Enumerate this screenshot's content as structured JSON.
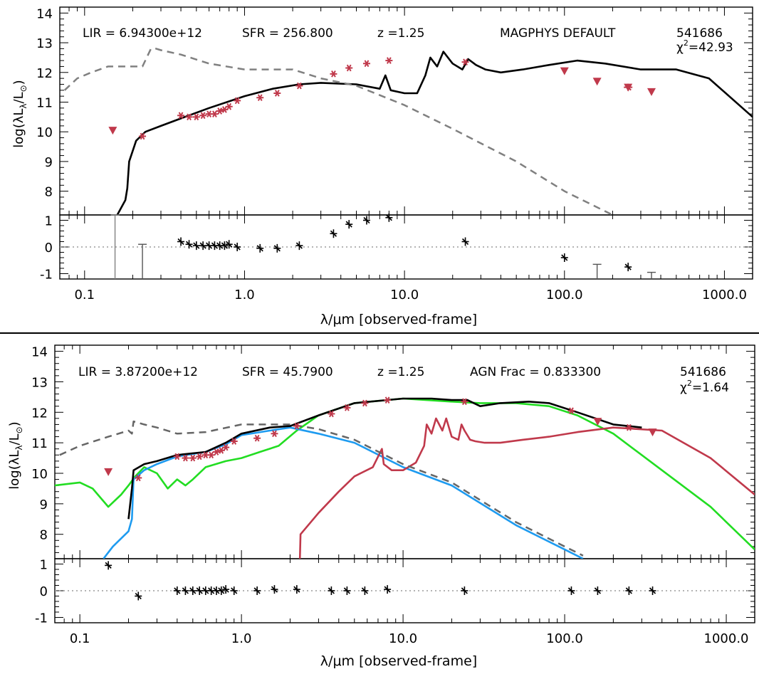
{
  "chart_data": [
    {
      "type": "line",
      "xscale": "log",
      "xlim": [
        0.07,
        1500
      ],
      "ylim": [
        7.2,
        14.2
      ],
      "xticks": [
        0.1,
        1.0,
        10.0,
        100.0,
        1000.0
      ],
      "xtick_labels": [
        "0.1",
        "1.0",
        "10.0",
        "100.0",
        "1000.0"
      ],
      "yticks": [
        8,
        9,
        10,
        11,
        12,
        13,
        14
      ],
      "ytick_labels": [
        "8",
        "9",
        "10",
        "11",
        "12",
        "13",
        "14"
      ],
      "xlabel": "λ/μm [observed-frame]",
      "ylabel": "log(λL",
      "ylabel_sub": "λ",
      "ylabel_unit": "/L",
      "ylabel_sun": "⊙",
      "ylabel_close": ")",
      "annotations": {
        "lir": "LIR =  6.94300e+12",
        "sfr": "SFR = 256.800",
        "z": "z =1.25",
        "model": "MAGPHYS DEFAULT",
        "id": "541686",
        "chi_symbol": "χ",
        "chi_sup": "2",
        "chi_value": "=42.93"
      },
      "series": [
        {
          "name": "total model",
          "color": "#000000",
          "style": "solid",
          "x": [
            0.16,
            0.18,
            0.185,
            0.19,
            0.21,
            0.24,
            0.3,
            0.4,
            0.6,
            1.0,
            1.5,
            2.2,
            3.0,
            5.0,
            7.0,
            7.6,
            8.2,
            10,
            12,
            13.5,
            14.5,
            16,
            17.5,
            20,
            23,
            25,
            28,
            32,
            40,
            55,
            80,
            120,
            180,
            300,
            500,
            800,
            1500
          ],
          "y": [
            7.2,
            7.7,
            8.1,
            9.0,
            9.7,
            10.0,
            10.2,
            10.45,
            10.8,
            11.2,
            11.45,
            11.6,
            11.65,
            11.6,
            11.45,
            11.9,
            11.4,
            11.3,
            11.3,
            11.9,
            12.5,
            12.2,
            12.7,
            12.3,
            12.1,
            12.45,
            12.25,
            12.1,
            12.0,
            12.1,
            12.25,
            12.4,
            12.3,
            12.1,
            12.1,
            11.8,
            10.5
          ]
        },
        {
          "name": "unattenuated stellar",
          "color": "#808080",
          "style": "dashed",
          "x": [
            0.075,
            0.09,
            0.11,
            0.14,
            0.18,
            0.23,
            0.26,
            0.28,
            0.3,
            0.4,
            0.6,
            1.0,
            2.0,
            3.0,
            5.0,
            10,
            20,
            50,
            100,
            200
          ],
          "y": [
            11.4,
            11.8,
            12.0,
            12.2,
            12.2,
            12.2,
            12.8,
            12.8,
            12.75,
            12.6,
            12.3,
            12.1,
            12.1,
            11.8,
            11.55,
            10.9,
            10.1,
            9.0,
            8.0,
            7.2
          ]
        },
        {
          "name": "photometry",
          "color": "#c0394b",
          "style": "marker",
          "marker": "asterisk",
          "x": [
            0.23,
            0.4,
            0.45,
            0.5,
            0.55,
            0.6,
            0.65,
            0.7,
            0.75,
            0.8,
            0.9,
            1.25,
            1.6,
            2.2,
            3.6,
            4.5,
            5.8,
            8.0,
            24
          ],
          "y": [
            9.85,
            10.55,
            10.5,
            10.5,
            10.55,
            10.6,
            10.6,
            10.7,
            10.75,
            10.85,
            11.05,
            11.15,
            11.3,
            11.55,
            11.95,
            12.15,
            12.3,
            12.4,
            12.35
          ]
        },
        {
          "name": "photometry (x-errors)",
          "color": "#c0394b",
          "style": "marker",
          "marker": "xbar",
          "x": [
            250
          ],
          "y": [
            11.5
          ]
        },
        {
          "name": "upper limits",
          "color": "#c0394b",
          "style": "marker",
          "marker": "triangle-down",
          "x": [
            0.15,
            100,
            160,
            250,
            350
          ],
          "y": [
            10.05,
            12.05,
            11.7,
            11.5,
            11.35
          ]
        }
      ],
      "residual_panel": {
        "ylim": [
          -1.2,
          1.2
        ],
        "yticks": [
          -1,
          0,
          1
        ],
        "ytick_labels": [
          "-1",
          "0",
          "1"
        ],
        "points": {
          "x": [
            0.4,
            0.45,
            0.5,
            0.55,
            0.6,
            0.65,
            0.7,
            0.75,
            0.8,
            0.9,
            1.25,
            1.6,
            2.2,
            3.6,
            4.5,
            5.8,
            8.0,
            24,
            100,
            250
          ],
          "y": [
            0.2,
            0.1,
            0.05,
            0.05,
            0.05,
            0.05,
            0.05,
            0.05,
            0.1,
            0.0,
            -0.05,
            -0.05,
            0.05,
            0.5,
            0.85,
            1.0,
            1.1,
            0.2,
            -0.4,
            -0.75
          ]
        },
        "limits": {
          "x": [
            0.155,
            0.23,
            160,
            350
          ],
          "top": [
            1.2,
            0.1,
            -0.65,
            -0.95
          ],
          "bottom": [
            -1.2,
            -1.2,
            -1.2,
            -1.2
          ],
          "color": [
            "#808080",
            "#555555",
            "#555555",
            "#555555"
          ]
        }
      }
    },
    {
      "type": "line",
      "xscale": "log",
      "xlim": [
        0.07,
        1500
      ],
      "ylim": [
        7.2,
        14.2
      ],
      "xticks": [
        0.1,
        1.0,
        10.0,
        100.0,
        1000.0
      ],
      "xtick_labels": [
        "0.1",
        "1.0",
        "10.0",
        "100.0",
        "1000.0"
      ],
      "yticks": [
        8,
        9,
        10,
        11,
        12,
        13,
        14
      ],
      "ytick_labels": [
        "8",
        "9",
        "10",
        "11",
        "12",
        "13",
        "14"
      ],
      "xlabel": "λ/μm [observed-frame]",
      "ylabel": "log(λL",
      "ylabel_sub": "λ",
      "ylabel_unit": "/L",
      "ylabel_sun": "⊙",
      "ylabel_close": ")",
      "annotations": {
        "lir": "LIR =  3.87200e+12",
        "sfr": "SFR = 45.7900",
        "z": "z =1.25",
        "model": "AGN Frac =  0.833300",
        "id": "541686",
        "chi_symbol": "χ",
        "chi_sup": "2",
        "chi_value": "=1.64"
      },
      "series": [
        {
          "name": "AGN (green)",
          "color": "#22dd22",
          "style": "solid",
          "x": [
            0.07,
            0.1,
            0.12,
            0.15,
            0.18,
            0.2,
            0.22,
            0.25,
            0.3,
            0.35,
            0.4,
            0.45,
            0.5,
            0.6,
            0.8,
            1.0,
            1.3,
            1.7,
            2.2,
            3.0,
            5.0,
            10,
            20,
            30,
            50,
            80,
            120,
            200,
            400,
            800,
            1500
          ],
          "y": [
            9.6,
            9.7,
            9.5,
            8.9,
            9.3,
            9.6,
            9.9,
            10.2,
            10.0,
            9.5,
            9.8,
            9.6,
            9.8,
            10.2,
            10.4,
            10.5,
            10.7,
            10.9,
            11.4,
            11.9,
            12.3,
            12.45,
            12.35,
            12.3,
            12.3,
            12.2,
            11.9,
            11.3,
            10.1,
            8.9,
            7.5
          ]
        },
        {
          "name": "stellar (blue)",
          "color": "#1e9bf0",
          "style": "solid",
          "x": [
            0.14,
            0.16,
            0.2,
            0.21,
            0.215,
            0.25,
            0.3,
            0.4,
            0.6,
            0.8,
            1.0,
            1.5,
            2.0,
            3.0,
            5.0,
            10,
            20,
            50,
            100,
            130
          ],
          "y": [
            7.2,
            7.6,
            8.1,
            8.5,
            9.8,
            10.1,
            10.3,
            10.55,
            10.7,
            10.95,
            11.25,
            11.4,
            11.5,
            11.3,
            11.0,
            10.2,
            9.6,
            8.3,
            7.5,
            7.2
          ]
        },
        {
          "name": "dust (red)",
          "color": "#c0394b",
          "style": "solid",
          "x": [
            2.3,
            2.32,
            3.0,
            4.0,
            5.0,
            6.5,
            7.4,
            7.6,
            8.5,
            10,
            12,
            13.5,
            14,
            15,
            16,
            17.5,
            18.5,
            20,
            22,
            23,
            24,
            26,
            28,
            32,
            40,
            55,
            80,
            120,
            200,
            400,
            800,
            1500
          ],
          "y": [
            7.2,
            8.0,
            8.7,
            9.4,
            9.9,
            10.2,
            10.8,
            10.3,
            10.1,
            10.1,
            10.35,
            10.9,
            11.6,
            11.3,
            11.8,
            11.4,
            11.8,
            11.2,
            11.1,
            11.6,
            11.4,
            11.1,
            11.05,
            11.0,
            11.0,
            11.1,
            11.2,
            11.35,
            11.5,
            11.4,
            10.5,
            9.3
          ]
        },
        {
          "name": "total model",
          "color": "#000000",
          "style": "solid",
          "x": [
            0.2,
            0.21,
            0.215,
            0.25,
            0.3,
            0.4,
            0.6,
            0.8,
            1.0,
            1.5,
            2.0,
            3.0,
            5.0,
            10,
            15,
            20,
            25,
            30,
            40,
            60,
            80,
            120,
            200,
            300
          ],
          "y": [
            8.5,
            9.5,
            10.1,
            10.3,
            10.4,
            10.6,
            10.7,
            11.0,
            11.3,
            11.5,
            11.55,
            11.9,
            12.3,
            12.45,
            12.45,
            12.4,
            12.4,
            12.2,
            12.3,
            12.35,
            12.3,
            12.0,
            11.6,
            11.5
          ]
        },
        {
          "name": "unattenuated stellar",
          "color": "#666666",
          "style": "dashed",
          "x": [
            0.075,
            0.1,
            0.15,
            0.2,
            0.21,
            0.215,
            0.25,
            0.3,
            0.4,
            0.6,
            1.0,
            2.0,
            3.0,
            5.0,
            10,
            20,
            50,
            100,
            130
          ],
          "y": [
            10.6,
            10.9,
            11.2,
            11.4,
            11.3,
            11.7,
            11.6,
            11.5,
            11.3,
            11.35,
            11.6,
            11.6,
            11.45,
            11.1,
            10.3,
            9.7,
            8.4,
            7.6,
            7.3
          ]
        },
        {
          "name": "photometry",
          "color": "#c0394b",
          "style": "marker",
          "marker": "asterisk",
          "x": [
            0.23,
            0.4,
            0.45,
            0.5,
            0.55,
            0.6,
            0.65,
            0.7,
            0.75,
            0.8,
            0.9,
            1.25,
            1.6,
            2.2,
            3.6,
            4.5,
            5.8,
            8.0,
            24,
            110,
            250
          ],
          "y": [
            9.85,
            10.55,
            10.5,
            10.5,
            10.55,
            10.6,
            10.6,
            10.7,
            10.75,
            10.85,
            11.05,
            11.15,
            11.3,
            11.55,
            11.95,
            12.15,
            12.3,
            12.4,
            12.35,
            12.05,
            11.5
          ]
        },
        {
          "name": "upper limits",
          "color": "#c0394b",
          "style": "marker",
          "marker": "triangle-down",
          "x": [
            0.15,
            160,
            350
          ],
          "y": [
            10.05,
            11.7,
            11.35
          ]
        }
      ],
      "residual_panel": {
        "ylim": [
          -1.2,
          1.2
        ],
        "yticks": [
          -1,
          0,
          1
        ],
        "ytick_labels": [
          "-1",
          "0",
          "1"
        ],
        "points": {
          "x": [
            0.15,
            0.23,
            0.4,
            0.45,
            0.5,
            0.55,
            0.6,
            0.65,
            0.7,
            0.75,
            0.8,
            0.9,
            1.25,
            1.6,
            2.2,
            3.6,
            4.5,
            5.8,
            8.0,
            24,
            110,
            160,
            250,
            350
          ],
          "y": [
            0.95,
            -0.2,
            0.0,
            0.0,
            0.0,
            0.0,
            0.0,
            0.0,
            0.0,
            0.0,
            0.05,
            0.0,
            0.0,
            0.05,
            0.05,
            0.0,
            0.0,
            0.0,
            0.05,
            0.0,
            0.0,
            0.0,
            0.0,
            0.0
          ]
        },
        "limits": {
          "x": [],
          "top": [],
          "bottom": [],
          "color": []
        }
      }
    }
  ]
}
